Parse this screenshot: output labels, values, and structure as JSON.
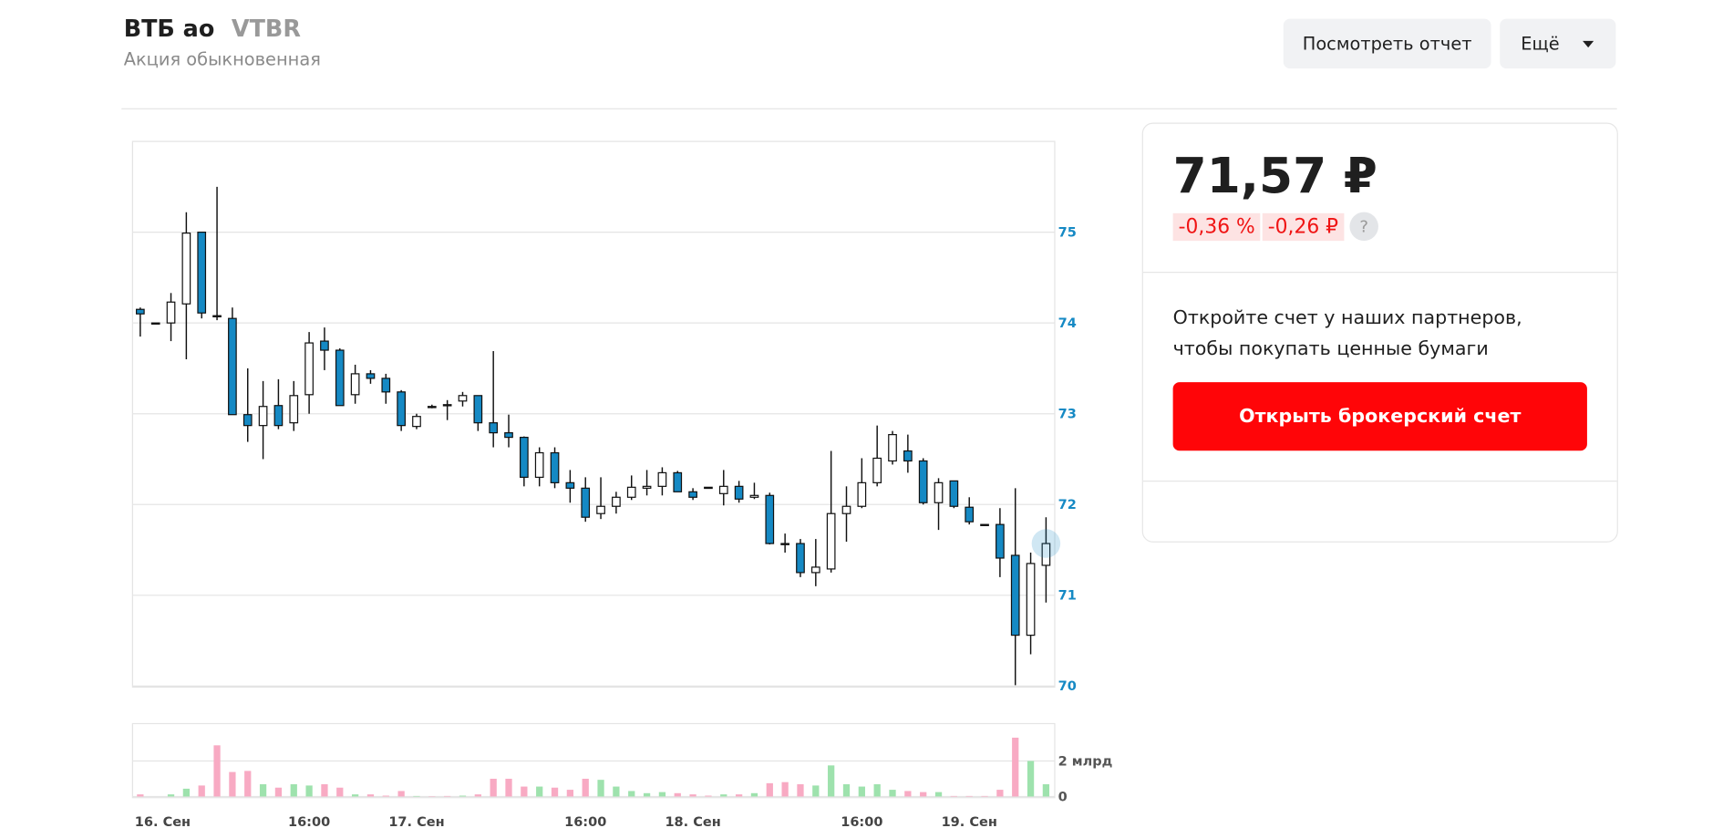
{
  "header": {
    "title": "ВТБ ао",
    "ticker": "VTBR",
    "subtitle": "Акция обыкновенная",
    "report_button": "Посмотреть отчет",
    "more_button": "Ещё"
  },
  "quote": {
    "price": "71,57 ₽",
    "change_percent": "-0,36 %",
    "change_value": "-0,26 ₽",
    "help": "?",
    "promo_lines": [
      "Откройте счет у наших партнеров,",
      "чтобы покупать ценные бумаги"
    ],
    "open_account_button": "Открыть брокерский счет"
  },
  "chart_data": {
    "type": "candlestick",
    "categories": [
      "16. Сен",
      null,
      null,
      null,
      null,
      null,
      null,
      null,
      null,
      null,
      null,
      "16:00",
      null,
      null,
      null,
      null,
      null,
      null,
      "17. Сен",
      null,
      null,
      null,
      null,
      null,
      null,
      null,
      null,
      null,
      null,
      "16:00",
      null,
      null,
      null,
      null,
      null,
      null,
      "18. Сен",
      null,
      null,
      null,
      null,
      null,
      null,
      null,
      null,
      null,
      null,
      "16:00",
      null,
      null,
      null,
      null,
      null,
      null,
      "19. Сен",
      null,
      null,
      null,
      null,
      null
    ],
    "open": [
      74.15,
      74.0,
      74.0,
      74.21,
      75.0,
      74.08,
      74.05,
      72.99,
      72.87,
      73.09,
      72.9,
      73.21,
      73.8,
      73.7,
      73.21,
      73.44,
      73.39,
      73.24,
      72.86,
      73.08,
      73.1,
      73.14,
      73.2,
      72.9,
      72.79,
      72.74,
      72.3,
      72.57,
      72.24,
      72.18,
      71.9,
      71.98,
      72.08,
      72.18,
      72.2,
      72.35,
      72.14,
      72.19,
      72.12,
      72.2,
      72.08,
      72.1,
      71.57,
      71.57,
      71.25,
      71.29,
      71.9,
      71.98,
      72.24,
      72.48,
      72.59,
      72.48,
      72.02,
      72.26,
      71.97,
      71.78,
      71.78,
      71.44,
      70.56,
      71.33
    ],
    "high": [
      74.17,
      74.0,
      74.33,
      75.22,
      75.0,
      75.5,
      74.17,
      73.5,
      73.36,
      73.38,
      73.36,
      73.9,
      73.95,
      73.72,
      73.54,
      73.48,
      73.44,
      73.26,
      73.0,
      73.1,
      73.15,
      73.24,
      73.2,
      73.69,
      72.99,
      72.75,
      72.63,
      72.63,
      72.38,
      72.3,
      72.3,
      72.14,
      72.32,
      72.38,
      72.41,
      72.37,
      72.18,
      72.19,
      72.38,
      72.26,
      72.24,
      72.13,
      71.68,
      71.62,
      71.62,
      72.59,
      72.2,
      72.51,
      72.87,
      72.81,
      72.77,
      72.51,
      72.29,
      72.26,
      72.08,
      71.78,
      71.96,
      72.18,
      71.47,
      71.86
    ],
    "low": [
      73.85,
      74.0,
      73.8,
      73.6,
      74.05,
      74.03,
      72.99,
      72.69,
      72.5,
      72.83,
      72.81,
      73.0,
      73.48,
      73.09,
      73.11,
      73.33,
      73.11,
      72.81,
      72.83,
      73.06,
      72.93,
      73.08,
      72.81,
      72.63,
      72.63,
      72.2,
      72.2,
      72.18,
      72.02,
      71.81,
      71.84,
      71.9,
      72.05,
      72.1,
      72.1,
      72.14,
      72.05,
      72.19,
      71.99,
      72.02,
      72.06,
      71.56,
      71.47,
      71.2,
      71.1,
      71.25,
      71.59,
      71.96,
      72.2,
      72.44,
      72.35,
      72.0,
      71.72,
      71.96,
      71.78,
      71.78,
      71.2,
      70.01,
      70.35,
      70.92
    ],
    "close": [
      74.1,
      74.0,
      74.23,
      74.99,
      74.11,
      74.08,
      72.99,
      72.87,
      73.08,
      72.87,
      73.2,
      73.78,
      73.7,
      73.09,
      73.44,
      73.39,
      73.24,
      72.87,
      72.97,
      73.08,
      73.1,
      73.2,
      72.9,
      72.79,
      72.74,
      72.3,
      72.57,
      72.24,
      72.18,
      71.86,
      71.98,
      72.08,
      72.19,
      72.2,
      72.35,
      72.14,
      72.08,
      72.19,
      72.2,
      72.06,
      72.1,
      71.57,
      71.57,
      71.25,
      71.31,
      71.9,
      71.98,
      72.24,
      72.51,
      72.77,
      72.48,
      72.02,
      72.24,
      71.98,
      71.81,
      71.78,
      71.41,
      70.56,
      71.35,
      71.57
    ],
    "volume": [
      0.12,
      0,
      0.12,
      0.44,
      0.62,
      2.88,
      1.38,
      1.44,
      0.69,
      0.5,
      0.69,
      0.62,
      0.69,
      0.5,
      0.12,
      0.12,
      0.05,
      0.31,
      0.03,
      0.02,
      0.03,
      0.05,
      0.12,
      1.0,
      1.0,
      0.56,
      0.56,
      0.5,
      0.38,
      1.0,
      0.94,
      0.56,
      0.31,
      0.19,
      0.25,
      0.19,
      0.12,
      0.05,
      0.12,
      0.12,
      0.19,
      0.75,
      0.81,
      0.69,
      0.62,
      1.75,
      0.69,
      0.56,
      0.69,
      0.38,
      0.31,
      0.25,
      0.25,
      0.03,
      0.03,
      0.03,
      0.38,
      3.31,
      2.0,
      0.69
    ],
    "ylim": [
      70,
      76
    ],
    "yticks": [
      70,
      71,
      72,
      73,
      74,
      75
    ],
    "volume_ylim": [
      0,
      4.1
    ],
    "volume_ticks": [
      0,
      {
        "value": 2,
        "label": "2 млрд"
      }
    ],
    "up_color": "#ffffff",
    "down_color": "#1589c4",
    "up_volume_color": "#9ee2ad",
    "down_volume_color": "#f8aac3",
    "grid": true
  }
}
